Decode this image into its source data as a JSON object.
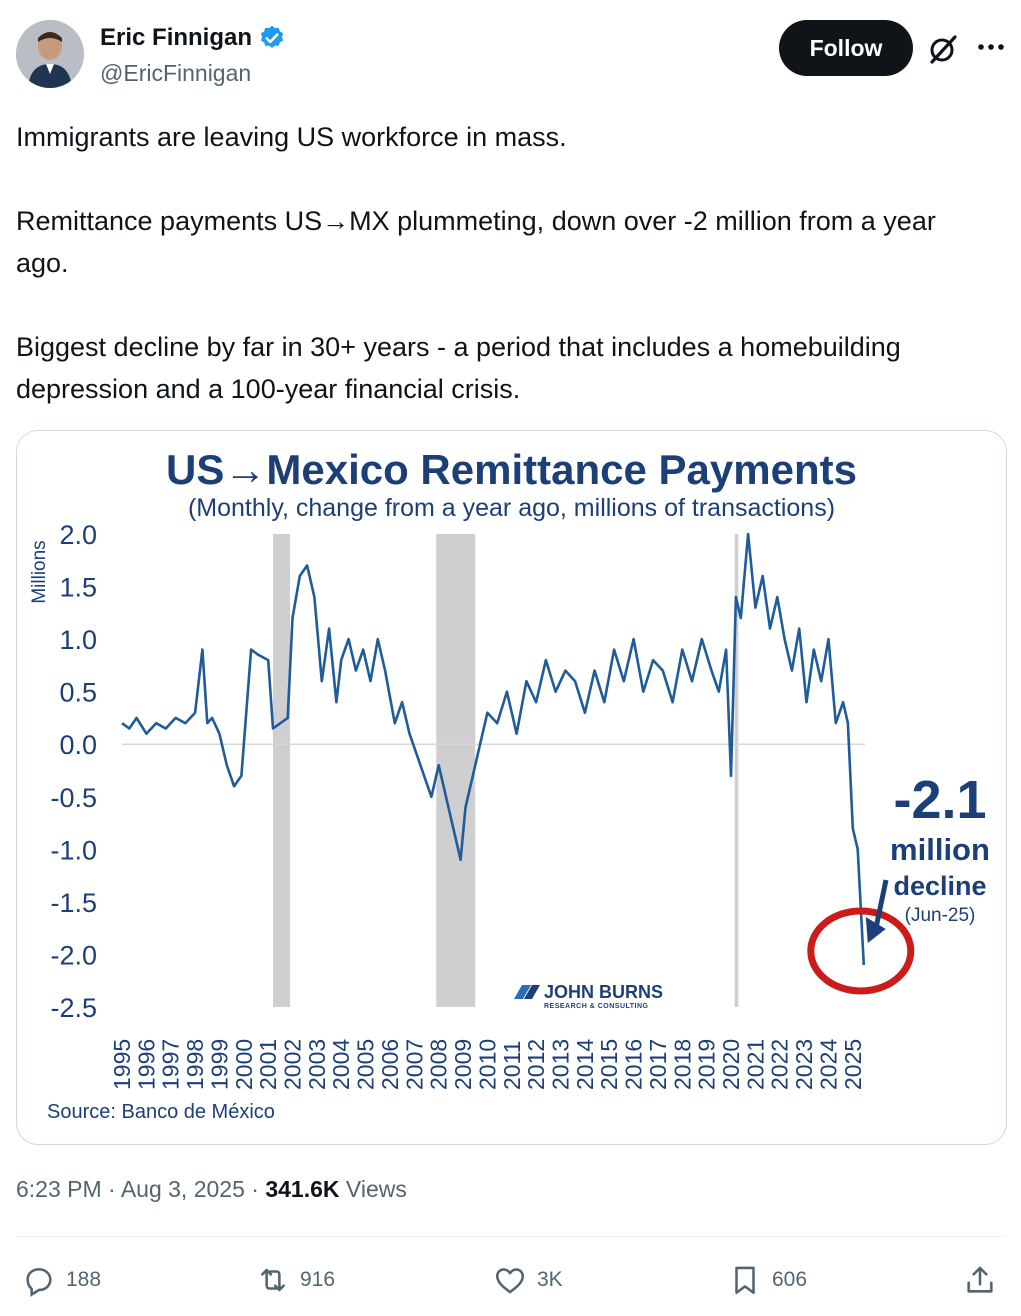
{
  "author": {
    "name": "Eric Finnigan",
    "handle": "@EricFinnigan",
    "verified": true,
    "verified_color": "#1d9bf0"
  },
  "header": {
    "follow_label": "Follow",
    "grok_icon": "grok-icon",
    "more_icon": "more-icon"
  },
  "tweet": {
    "paragraphs": [
      "Immigrants are leaving US workforce in mass.",
      "Remittance payments US→MX plummeting, down over -2 million from a year ago.",
      "Biggest decline by far in 30+ years - a period that includes a homebuilding depression and a 100-year financial crisis."
    ]
  },
  "chart_data": {
    "type": "line",
    "title": "US→Mexico Remittance Payments",
    "subtitle": "(Monthly, change from a year ago, millions of transactions)",
    "ylabel": "Millions",
    "ylim": [
      -2.5,
      2.0
    ],
    "yticks": [
      "2.0",
      "1.5",
      "1.0",
      "0.5",
      "0.0",
      "-0.5",
      "-1.0",
      "-1.5",
      "-2.0",
      "-2.5"
    ],
    "xticks": [
      "1995",
      "1996",
      "1997",
      "1998",
      "1999",
      "2000",
      "2001",
      "2002",
      "2003",
      "2004",
      "2005",
      "2006",
      "2007",
      "2008",
      "2009",
      "2010",
      "2011",
      "2012",
      "2013",
      "2014",
      "2015",
      "2016",
      "2017",
      "2018",
      "2019",
      "2020",
      "2021",
      "2022",
      "2023",
      "2024",
      "2025"
    ],
    "recessions": [
      [
        2001.2,
        2001.9
      ],
      [
        2007.9,
        2009.5
      ],
      [
        2020.15,
        2020.3
      ]
    ],
    "line_color": "#1f5c99",
    "shade_color": "#cfcfd1",
    "series": [
      {
        "x": [
          1995.0,
          1995.3,
          1995.6,
          1996.0,
          1996.4,
          1996.8,
          1997.2,
          1997.6,
          1998.0,
          1998.3,
          1998.5,
          1998.7,
          1999.0,
          1999.3,
          1999.6,
          1999.9,
          2000.3,
          2000.6,
          2001.0,
          2001.2,
          2001.5,
          2001.8,
          2002.0,
          2002.3,
          2002.6,
          2002.9,
          2003.2,
          2003.5,
          2003.8,
          2004.0,
          2004.3,
          2004.6,
          2004.9,
          2005.2,
          2005.5,
          2005.8,
          2006.2,
          2006.5,
          2006.8,
          2007.1,
          2007.4,
          2007.7,
          2008.0,
          2008.3,
          2008.6,
          2008.9,
          2009.1,
          2009.4,
          2009.7,
          2010.0,
          2010.4,
          2010.8,
          2011.2,
          2011.6,
          2012.0,
          2012.4,
          2012.8,
          2013.2,
          2013.6,
          2014.0,
          2014.4,
          2014.8,
          2015.2,
          2015.6,
          2016.0,
          2016.4,
          2016.8,
          2017.2,
          2017.6,
          2018.0,
          2018.4,
          2018.8,
          2019.2,
          2019.5,
          2019.8,
          2020.0,
          2020.2,
          2020.4,
          2020.7,
          2021.0,
          2021.3,
          2021.6,
          2021.9,
          2022.2,
          2022.5,
          2022.8,
          2023.1,
          2023.4,
          2023.7,
          2024.0,
          2024.3,
          2024.6,
          2024.8,
          2025.0,
          2025.2,
          2025.45
        ],
        "y": [
          0.2,
          0.15,
          0.25,
          0.1,
          0.2,
          0.15,
          0.25,
          0.2,
          0.3,
          0.9,
          0.2,
          0.25,
          0.1,
          -0.2,
          -0.4,
          -0.3,
          0.9,
          0.85,
          0.8,
          0.15,
          0.2,
          0.25,
          1.2,
          1.6,
          1.7,
          1.4,
          0.6,
          1.1,
          0.4,
          0.8,
          1.0,
          0.7,
          0.9,
          0.6,
          1.0,
          0.7,
          0.2,
          0.4,
          0.1,
          -0.1,
          -0.3,
          -0.5,
          -0.2,
          -0.5,
          -0.8,
          -1.1,
          -0.6,
          -0.3,
          0.0,
          0.3,
          0.2,
          0.5,
          0.1,
          0.6,
          0.4,
          0.8,
          0.5,
          0.7,
          0.6,
          0.3,
          0.7,
          0.4,
          0.9,
          0.6,
          1.0,
          0.5,
          0.8,
          0.7,
          0.4,
          0.9,
          0.6,
          1.0,
          0.7,
          0.5,
          0.9,
          -0.3,
          1.4,
          1.2,
          2.0,
          1.3,
          1.6,
          1.1,
          1.4,
          1.0,
          0.7,
          1.1,
          0.4,
          0.9,
          0.6,
          1.0,
          0.2,
          0.4,
          0.2,
          -0.8,
          -1.0,
          -2.1
        ]
      }
    ],
    "annotation": {
      "value": "-2.1",
      "line1": "million",
      "line2": "decline",
      "line3": "(Jun-25)",
      "circle_color": "#cc1b1b"
    },
    "logo": "JOHN BURNS",
    "logo_sub": "RESEARCH & CONSULTING",
    "source": "Source: Banco de México"
  },
  "meta": {
    "time": "6:23 PM",
    "date": "Aug 3, 2025",
    "views_count": "341.6K",
    "views_label": "Views"
  },
  "actions": {
    "replies": "188",
    "reposts": "916",
    "likes": "3K",
    "bookmarks": "606"
  }
}
